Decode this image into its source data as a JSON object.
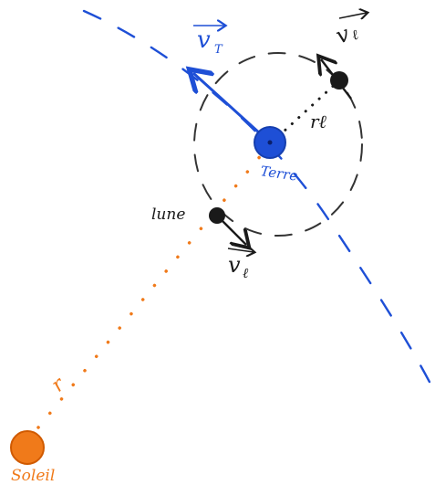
{
  "labels": {
    "vT": "v",
    "vT_sub": "T",
    "vl_top": "v",
    "vl_top_sub": "ℓ",
    "vl_bottom": "v",
    "vl_bottom_sub": "ℓ",
    "rl": "rℓ",
    "terre": "Terre",
    "lune": "lune",
    "soleil": "Soleil",
    "r": "r"
  },
  "colors": {
    "earth_blue": "#1e4fd6",
    "sun_orange": "#f07a1a",
    "ink": "#1a1a1a",
    "dashed_orbit": "#333333",
    "background": "#ffffff"
  }
}
